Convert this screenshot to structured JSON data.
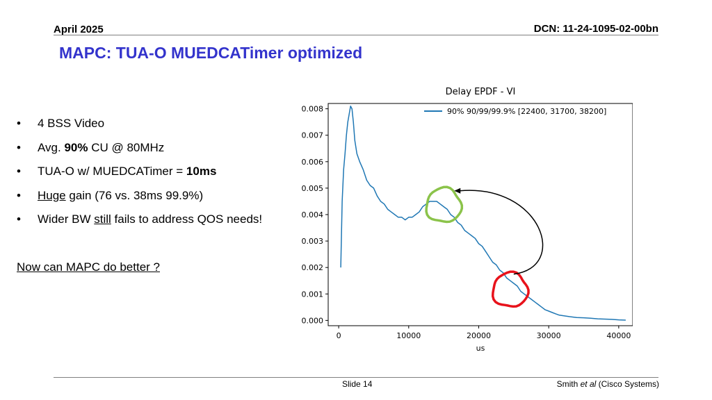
{
  "header": {
    "date": "April 2025",
    "dcn": "DCN: 11-24-1095-02-00bn"
  },
  "slide_title": "MAPC: TUA-O MUEDCATimer optimized",
  "bullets": [
    {
      "text": "4 BSS Video"
    },
    {
      "prefix": "Avg. ",
      "bold": "90%",
      "suffix": " CU @ 80MHz"
    },
    {
      "prefix": "TUA-O w/ MUEDCATimer = ",
      "bold": "10ms"
    },
    {
      "underlined": "Huge",
      "suffix": " gain (76 vs. 38ms 99.9%)"
    },
    {
      "prefix": "Wider BW ",
      "underlined": "still",
      "suffix": " fails to address QOS needs!"
    }
  ],
  "question": "Now can MAPC do better ?",
  "footer": {
    "slide": "Slide 14",
    "author_name": "Smith ",
    "author_etal": "et al",
    "author_org": " (Cisco Systems)"
  },
  "colors": {
    "title": "#3333cc",
    "series": "#1f77b4",
    "green_circle": "#8bc34a",
    "red_circle": "#e8121b",
    "arrow": "#000000"
  },
  "chart_data": {
    "type": "line",
    "title": "Delay EPDF - VI",
    "xlabel": "us",
    "ylabel": "",
    "xlim": [
      -1500,
      42000
    ],
    "ylim": [
      -0.0002,
      0.0082
    ],
    "xticks": [
      0,
      10000,
      20000,
      30000,
      40000
    ],
    "xtick_labels": [
      "0",
      "10000",
      "20000",
      "30000",
      "40000"
    ],
    "yticks": [
      0.0,
      0.001,
      0.002,
      0.003,
      0.004,
      0.005,
      0.006,
      0.007,
      0.008
    ],
    "ytick_labels": [
      "0.000",
      "0.001",
      "0.002",
      "0.003",
      "0.004",
      "0.005",
      "0.006",
      "0.007",
      "0.008"
    ],
    "grid": false,
    "legend_position": "top-right",
    "series": [
      {
        "name": "90% 90/99/99.9% [22400, 31700, 38200]",
        "x": [
          300,
          500,
          700,
          900,
          1100,
          1300,
          1500,
          1700,
          1900,
          2100,
          2300,
          2600,
          3000,
          3500,
          4000,
          4500,
          5000,
          5500,
          6000,
          6500,
          7000,
          7500,
          8000,
          8500,
          9000,
          9500,
          10000,
          10500,
          11000,
          11500,
          12000,
          12500,
          13000,
          13500,
          14000,
          14500,
          15000,
          15500,
          16000,
          16500,
          17000,
          17500,
          18000,
          18500,
          19000,
          19500,
          20000,
          20500,
          21000,
          21500,
          22000,
          22500,
          23000,
          23500,
          24000,
          24500,
          25000,
          25500,
          26000,
          26500,
          27000,
          27500,
          28000,
          28500,
          29000,
          29500,
          30000,
          30500,
          31000,
          31500,
          32000,
          33000,
          34000,
          35000,
          36000,
          37000,
          38000,
          39000,
          40000,
          41000
        ],
        "y": [
          0.002,
          0.0045,
          0.0057,
          0.0063,
          0.007,
          0.0075,
          0.0078,
          0.0081,
          0.008,
          0.0075,
          0.0068,
          0.0063,
          0.006,
          0.0057,
          0.0053,
          0.0051,
          0.005,
          0.0047,
          0.0045,
          0.0044,
          0.0042,
          0.0041,
          0.004,
          0.0039,
          0.0039,
          0.0038,
          0.0039,
          0.0039,
          0.004,
          0.0041,
          0.0043,
          0.0044,
          0.0045,
          0.0045,
          0.0045,
          0.0044,
          0.0043,
          0.0042,
          0.004,
          0.0039,
          0.0037,
          0.0036,
          0.0034,
          0.0033,
          0.0032,
          0.0031,
          0.0029,
          0.0028,
          0.0026,
          0.0024,
          0.0022,
          0.0021,
          0.0019,
          0.0018,
          0.0016,
          0.0015,
          0.0014,
          0.0013,
          0.0011,
          0.001,
          0.0009,
          0.0008,
          0.0007,
          0.0006,
          0.0005,
          0.0004,
          0.00035,
          0.0003,
          0.00025,
          0.0002,
          0.00018,
          0.00014,
          0.00011,
          0.0001,
          8e-05,
          6e-05,
          5e-05,
          4e-05,
          2e-05,
          1e-05
        ]
      }
    ],
    "annotations": [
      {
        "type": "circle",
        "color": "green",
        "x_range": [
          12500,
          17500
        ],
        "y_range": [
          0.0037,
          0.005
        ]
      },
      {
        "type": "circle",
        "color": "red",
        "x_range": [
          22000,
          27000
        ],
        "y_range": [
          0.0005,
          0.0018
        ]
      },
      {
        "type": "arrow",
        "from_x": 25000,
        "from_y": 0.00175,
        "to_x": 16500,
        "to_y": 0.0049
      }
    ]
  }
}
